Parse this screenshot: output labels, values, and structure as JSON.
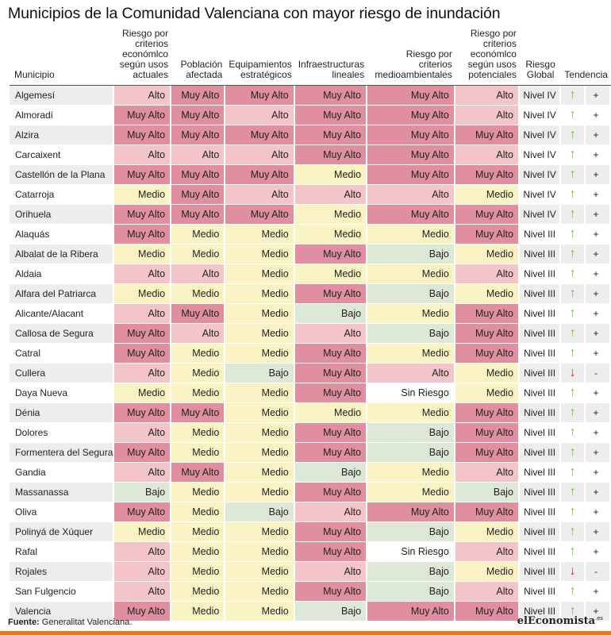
{
  "title": "Municipios de la Comunidad Valenciana con mayor riesgo de inundación",
  "colors": {
    "Muy Alto": "#df8fa0",
    "Alto": "#f3c4c8",
    "Medio": "#f9f3c3",
    "Bajo": "#dde8d6",
    "Sin Riesgo": "#ffffff",
    "arrow_up": "#6cbf3d",
    "arrow_down": "#cc2b2b",
    "brand_bar": "#e87722"
  },
  "headers": [
    "Municipio",
    "Riesgo por criterios económlco según usos actuales",
    "Población afectada",
    "Equipamientos estratégicos",
    "Infraestructuras lineales",
    "Riesgo por criterios medioambientales",
    "Riesgo por criterios económlco según usos potenciales",
    "Riesgo Global",
    "Tendencia"
  ],
  "rows": [
    {
      "m": "Algemesí",
      "v": [
        "Alto",
        "Muy Alto",
        "Muy Alto",
        "Muy Alto",
        "Muy Alto",
        "Alto"
      ],
      "g": "Nivel IV",
      "t": "up",
      "s": "+"
    },
    {
      "m": "Almoradí",
      "v": [
        "Muy Alto",
        "Muy Alto",
        "Alto",
        "Muy Alto",
        "Muy Alto",
        "Alto"
      ],
      "g": "Nivel IV",
      "t": "up",
      "s": "+"
    },
    {
      "m": "Alzira",
      "v": [
        "Muy Alto",
        "Muy Alto",
        "Muy Alto",
        "Muy Alto",
        "Muy Alto",
        "Muy Alto"
      ],
      "g": "Nivel IV",
      "t": "up",
      "s": "+"
    },
    {
      "m": "Carcaixent",
      "v": [
        "Alto",
        "Alto",
        "Alto",
        "Muy Alto",
        "Muy Alto",
        "Alto"
      ],
      "g": "Nivel IV",
      "t": "up",
      "s": "+"
    },
    {
      "m": "Castellón de la Plana",
      "v": [
        "Muy Alto",
        "Muy Alto",
        "Muy Alto",
        "Medio",
        "Muy Alto",
        "Muy Alto"
      ],
      "g": "Nivel IV",
      "t": "up",
      "s": "+"
    },
    {
      "m": "Catarroja",
      "v": [
        "Medio",
        "Muy Alto",
        "Alto",
        "Alto",
        "Alto",
        "Medio"
      ],
      "g": "Nivel IV",
      "t": "up",
      "s": "+"
    },
    {
      "m": "Orihuela",
      "v": [
        "Muy Alto",
        "Muy Alto",
        "Muy Alto",
        "Medio",
        "Muy Alto",
        "Muy Alto"
      ],
      "g": "Nivel IV",
      "t": "up",
      "s": "+"
    },
    {
      "m": "Alaquás",
      "v": [
        "Muy Alto",
        "Medio",
        "Medio",
        "Medio",
        "Medio",
        "Muy Alto"
      ],
      "g": "Nivel III",
      "t": "up",
      "s": "+"
    },
    {
      "m": "Albalat de la Ribera",
      "v": [
        "Medio",
        "Medio",
        "Medio",
        "Muy Alto",
        "Bajo",
        "Medio"
      ],
      "g": "Nivel III",
      "t": "up",
      "s": "+"
    },
    {
      "m": "Aldaia",
      "v": [
        "Alto",
        "Alto",
        "Medio",
        "Medio",
        "Medio",
        "Alto"
      ],
      "g": "Nivel III",
      "t": "up",
      "s": "+"
    },
    {
      "m": "Alfara del Patriarca",
      "v": [
        "Medio",
        "Medio",
        "Medio",
        "Muy Alto",
        "Bajo",
        "Medio"
      ],
      "g": "Nivel III",
      "t": "up",
      "s": "+"
    },
    {
      "m": "Alicante/Alacant",
      "v": [
        "Alto",
        "Muy Alto",
        "Medio",
        "Bajo",
        "Medio",
        "Muy Alto"
      ],
      "g": "Nivel III",
      "t": "up",
      "s": "+"
    },
    {
      "m": "Callosa de Segura",
      "v": [
        "Muy Alto",
        "Alto",
        "Medio",
        "Alto",
        "Bajo",
        "Muy Alto"
      ],
      "g": "Nivel III",
      "t": "up",
      "s": "+"
    },
    {
      "m": "Catral",
      "v": [
        "Muy Alto",
        "Medio",
        "Medio",
        "Muy Alto",
        "Medio",
        "Muy Alto"
      ],
      "g": "Nivel III",
      "t": "up",
      "s": "+"
    },
    {
      "m": "Cullera",
      "v": [
        "Alto",
        "Medio",
        "Bajo",
        "Muy Alto",
        "Alto",
        "Medio"
      ],
      "g": "Nivel III",
      "t": "down",
      "s": "-"
    },
    {
      "m": "Daya Nueva",
      "v": [
        "Medio",
        "Medio",
        "Medio",
        "Muy Alto",
        "Sin Riesgo",
        "Medio"
      ],
      "g": "Nivel III",
      "t": "up",
      "s": "+"
    },
    {
      "m": "Dénia",
      "v": [
        "Muy Alto",
        "Muy Alto",
        "Medio",
        "Medio",
        "Medio",
        "Muy Alto"
      ],
      "g": "Nivel III",
      "t": "up",
      "s": "+"
    },
    {
      "m": "Dolores",
      "v": [
        "Alto",
        "Medio",
        "Medio",
        "Muy Alto",
        "Bajo",
        "Muy Alto"
      ],
      "g": "Nivel III",
      "t": "up",
      "s": "+"
    },
    {
      "m": "Formentera del Segura",
      "v": [
        "Muy Alto",
        "Medio",
        "Medio",
        "Muy Alto",
        "Bajo",
        "Muy Alto"
      ],
      "g": "Nivel III",
      "t": "up",
      "s": "+"
    },
    {
      "m": "Gandia",
      "v": [
        "Alto",
        "Muy Alto",
        "Medio",
        "Bajo",
        "Medio",
        "Alto"
      ],
      "g": "Nivel III",
      "t": "up",
      "s": "+"
    },
    {
      "m": "Massanassa",
      "v": [
        "Bajo",
        "Medio",
        "Medio",
        "Muy Alto",
        "Medio",
        "Bajo"
      ],
      "g": "Nivel III",
      "t": "up",
      "s": "+"
    },
    {
      "m": "Oliva",
      "v": [
        "Muy Alto",
        "Medio",
        "Bajo",
        "Alto",
        "Muy Alto",
        "Muy Alto"
      ],
      "g": "Nivel III",
      "t": "up",
      "s": "+"
    },
    {
      "m": "Polinyá de Xúquer",
      "v": [
        "Medio",
        "Medio",
        "Medio",
        "Muy Alto",
        "Bajo",
        "Medio"
      ],
      "g": "Nivel III",
      "t": "up",
      "s": "+"
    },
    {
      "m": "Rafal",
      "v": [
        "Alto",
        "Medio",
        "Medio",
        "Muy Alto",
        "Sin Riesgo",
        "Alto"
      ],
      "g": "Nivel III",
      "t": "up",
      "s": "+"
    },
    {
      "m": "Rojales",
      "v": [
        "Alto",
        "Medio",
        "Medio",
        "Alto",
        "Bajo",
        "Medio"
      ],
      "g": "Nivel III",
      "t": "down",
      "s": "-"
    },
    {
      "m": "San Fulgencio",
      "v": [
        "Alto",
        "Medio",
        "Medio",
        "Muy Alto",
        "Bajo",
        "Alto"
      ],
      "g": "Nivel III",
      "t": "up",
      "s": "+"
    },
    {
      "m": "Valencia",
      "v": [
        "Muy Alto",
        "Medio",
        "Medio",
        "Bajo",
        "Muy Alto",
        "Muy Alto"
      ],
      "g": "Nivel III",
      "t": "up",
      "s": "+"
    }
  ],
  "footer": {
    "label": "Fuente:",
    "text": "Generalitat Valenciana."
  },
  "brand": {
    "text": "elEconomista",
    "suffix": ".es"
  }
}
